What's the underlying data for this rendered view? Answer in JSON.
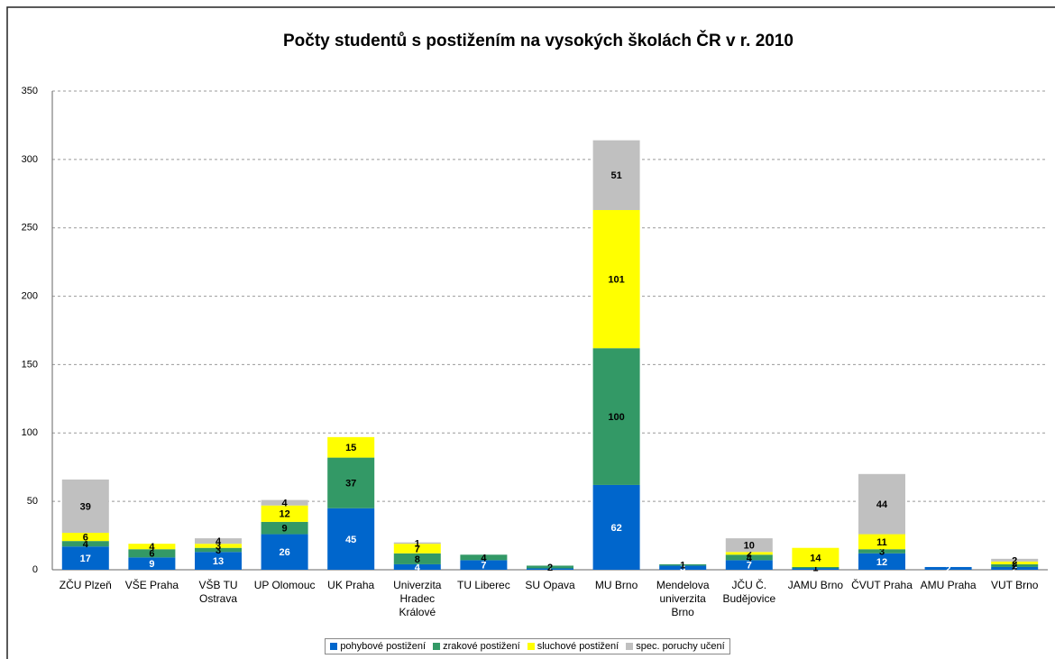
{
  "chart_data": {
    "type": "stacked_bar",
    "title": "Počty studentů s postižením na vysokých školách ČR v r. 2010",
    "categories": [
      "ZČU Plzeň",
      "VŠE Praha",
      "VŠB TU Ostrava",
      "UP Olomouc",
      "UK Praha",
      "Univerzita Hradec Králové",
      "TU Liberec",
      "SU Opava",
      "MU Brno",
      "Mendelova univerzita Brno",
      "JČU Č. Budějovice",
      "JAMU Brno",
      "ČVUT Praha",
      "AMU Praha",
      "VUT Brno"
    ],
    "series": [
      {
        "name": "pohybové postižení",
        "color": "#0066cc",
        "values": [
          17,
          9,
          13,
          26,
          45,
          4,
          7,
          1,
          62,
          3,
          7,
          1,
          12,
          2,
          2
        ]
      },
      {
        "name": "zrakové postižení",
        "color": "#339966",
        "values": [
          4,
          6,
          3,
          9,
          37,
          8,
          4,
          2,
          100,
          1,
          4,
          1,
          3,
          null,
          2
        ]
      },
      {
        "name": "sluchové postižení",
        "color": "#ffff00",
        "values": [
          6,
          4,
          3,
          12,
          15,
          7,
          null,
          null,
          101,
          null,
          2,
          14,
          11,
          null,
          2
        ]
      },
      {
        "name": "spec. poruchy učení",
        "color": "#c0c0c0",
        "values": [
          39,
          null,
          4,
          4,
          null,
          1,
          null,
          null,
          51,
          null,
          10,
          null,
          44,
          null,
          2
        ]
      }
    ],
    "ylim": [
      0,
      350
    ],
    "yticks": [
      0,
      50,
      100,
      150,
      200,
      250,
      300,
      350
    ],
    "grid": true,
    "legend": "bottom"
  }
}
